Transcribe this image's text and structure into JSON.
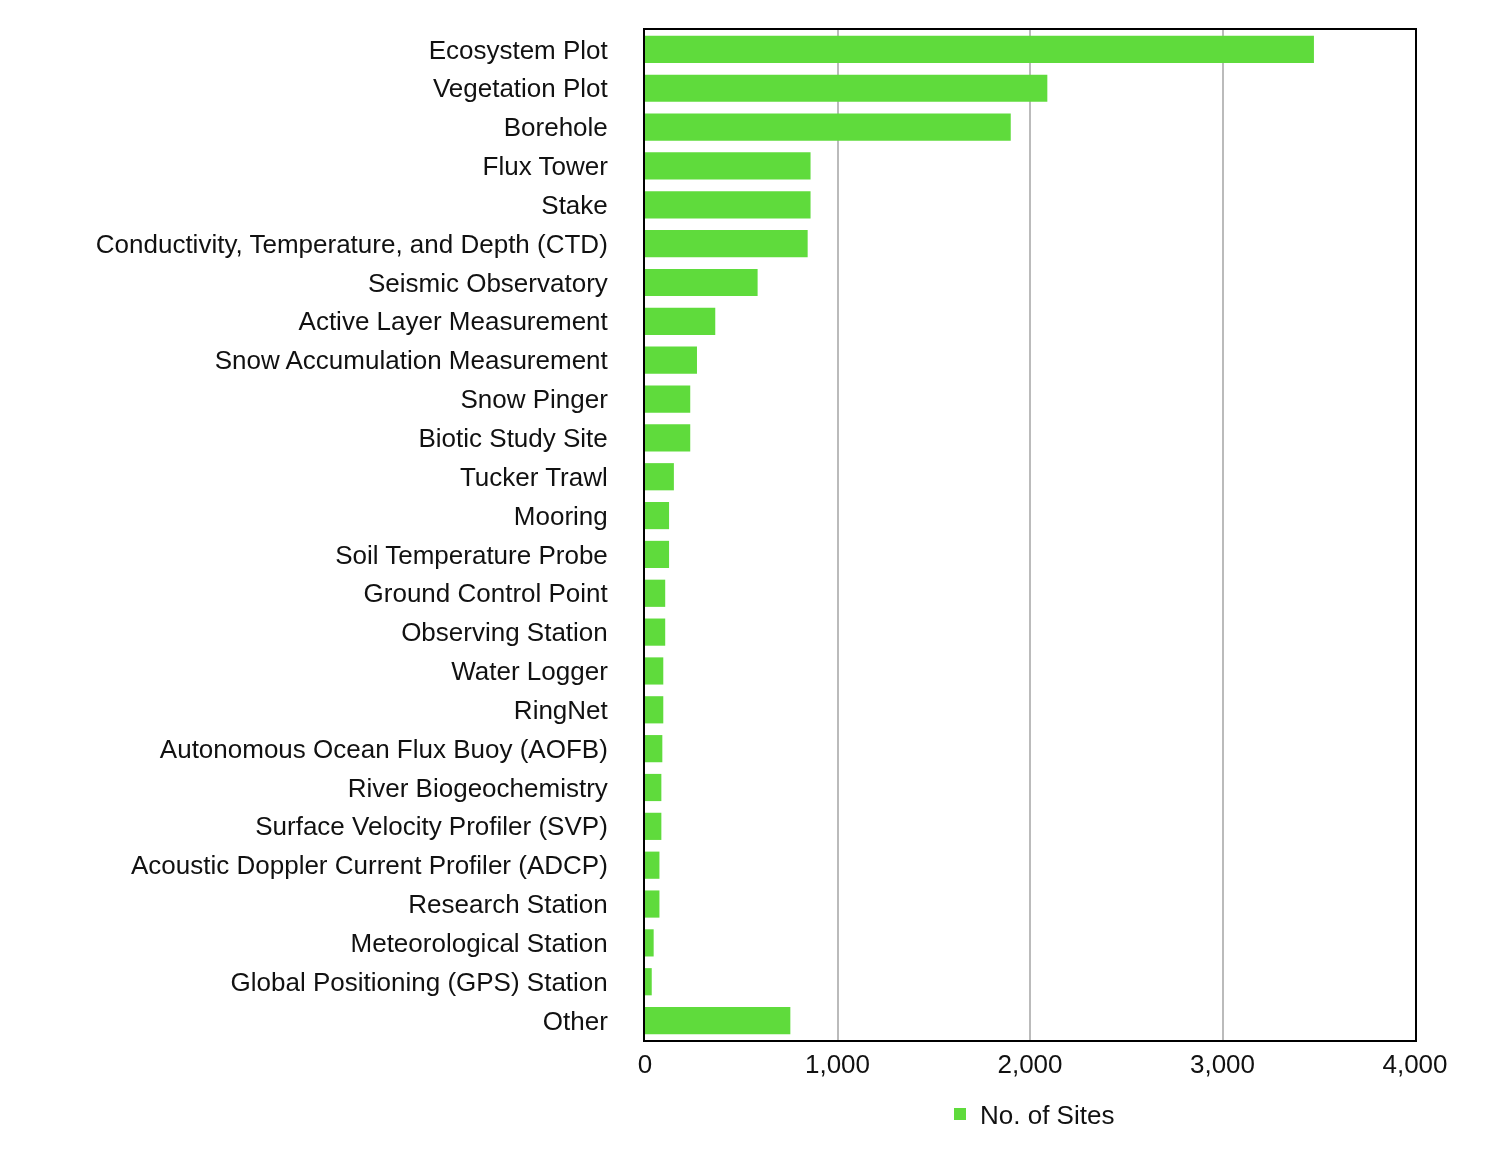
{
  "chart_data": {
    "type": "bar",
    "orientation": "horizontal",
    "categories": [
      "Ecosystem Plot",
      "Vegetation Plot",
      "Borehole",
      "Flux Tower",
      "Stake",
      "Conductivity, Temperature, and Depth (CTD)",
      "Seismic Observatory",
      "Active Layer Measurement",
      "Snow Accumulation Measurement",
      "Snow Pinger",
      "Biotic Study Site",
      "Tucker Trawl",
      "Mooring",
      "Soil Temperature Probe",
      "Ground Control Point",
      "Observing Station",
      "Water Logger",
      "RingNet",
      "Autonomous Ocean Flux Buoy (AOFB)",
      "River Biogeochemistry",
      "Surface Velocity Profiler (SVP)",
      "Acoustic Doppler Current Profiler (ADCP)",
      "Research Station",
      "Meteorological Station",
      "Global Positioning (GPS) Station",
      "Other"
    ],
    "series": [
      {
        "name": "No. of Sites",
        "color": "#5fdb3c",
        "values": [
          3475,
          2090,
          1900,
          860,
          860,
          845,
          585,
          365,
          270,
          235,
          235,
          150,
          125,
          125,
          105,
          105,
          95,
          95,
          90,
          85,
          85,
          75,
          75,
          45,
          35,
          755
        ]
      }
    ],
    "xlim": [
      0,
      4000
    ],
    "xticks": [
      {
        "value": 0,
        "label": "0"
      },
      {
        "value": 1000,
        "label": "1,000"
      },
      {
        "value": 2000,
        "label": "2,000"
      },
      {
        "value": 3000,
        "label": "3,000"
      },
      {
        "value": 4000,
        "label": "4,000"
      }
    ],
    "grid": "x",
    "legend": "bottom"
  }
}
